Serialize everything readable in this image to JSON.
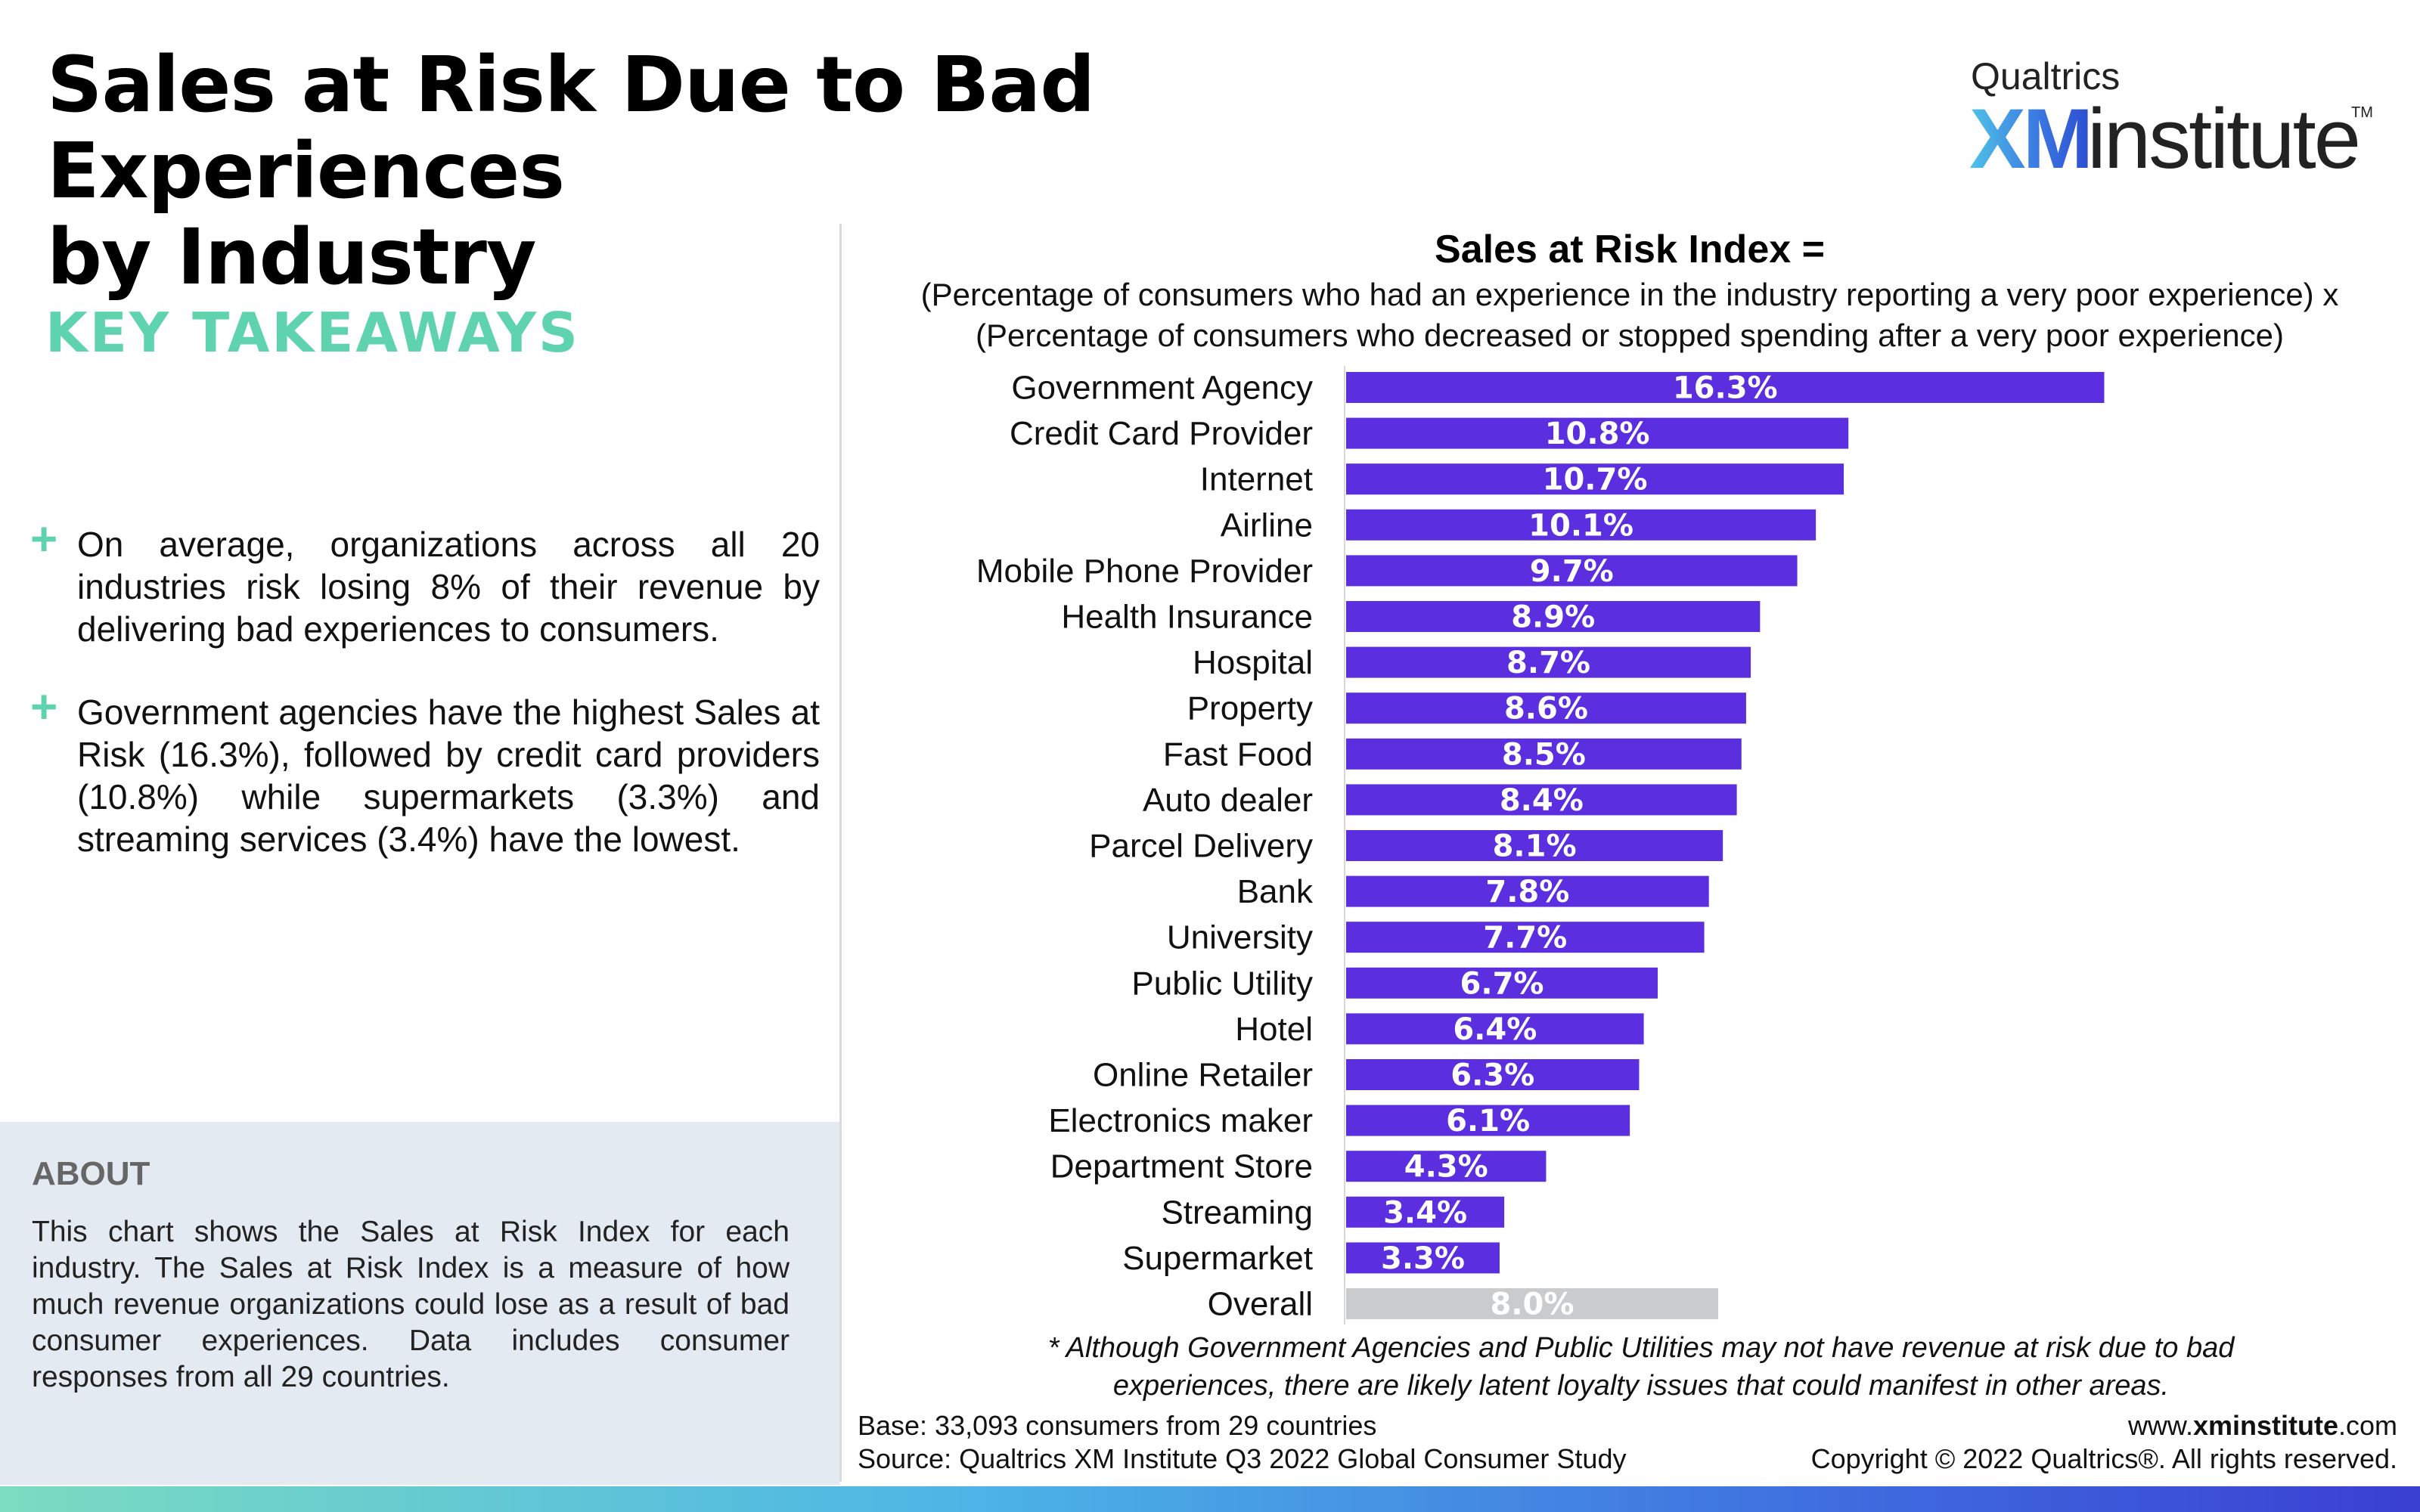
{
  "title": {
    "line1": "Sales at Risk Due to Bad Experiences",
    "line2": "by Industry"
  },
  "logo": {
    "top": "Qualtrics",
    "xm": "XM",
    "institute": "institute",
    "tm": "TM"
  },
  "key_takeaways": {
    "heading": "KEY TAKEAWAYS",
    "bullet_symbol": "+",
    "bullets": [
      "On average, organizations across all 20 industries risk losing 8% of their revenue by delivering bad experiences to consumers.",
      "Government agencies have the highest Sales at Risk (16.3%), followed by credit card providers (10.8%) while supermarkets (3.3%) and streaming services (3.4%) have the lowest."
    ]
  },
  "about": {
    "heading": "ABOUT",
    "text": "This chart shows the Sales at Risk Index for each industry. The Sales at Risk Index is a measure of how much revenue organizations could lose as a result of bad consumer experiences. Data includes consumer responses from all 29 countries."
  },
  "formula": {
    "title": "Sales at Risk Index =",
    "line1": "(Percentage of consumers who had an experience in the industry reporting a very poor experience) x",
    "line2": "(Percentage of consumers who decreased or stopped spending after a very poor experience)"
  },
  "chart_data": {
    "type": "bar",
    "orientation": "horizontal",
    "categories": [
      "Government Agency",
      "Credit Card Provider",
      "Internet",
      "Airline",
      "Mobile Phone Provider",
      "Health Insurance",
      "Hospital",
      "Property",
      "Fast Food",
      "Auto dealer",
      "Parcel Delivery",
      "Bank",
      "University",
      "Public Utility",
      "Hotel",
      "Online Retailer",
      "Electronics maker",
      "Department Store",
      "Streaming",
      "Supermarket",
      "Overall"
    ],
    "values": [
      16.3,
      10.8,
      10.7,
      10.1,
      9.7,
      8.9,
      8.7,
      8.6,
      8.5,
      8.4,
      8.1,
      7.8,
      7.7,
      6.7,
      6.4,
      6.3,
      6.1,
      4.3,
      3.4,
      3.3,
      8.0
    ],
    "value_labels": [
      "16.3%",
      "10.8%",
      "10.7%",
      "10.1%",
      "9.7%",
      "8.9%",
      "8.7%",
      "8.6%",
      "8.5%",
      "8.4%",
      "8.1%",
      "7.8%",
      "7.7%",
      "6.7%",
      "6.4%",
      "6.3%",
      "6.1%",
      "4.3%",
      "3.4%",
      "3.3%",
      "8.0%"
    ],
    "bar_color": "#5b2ee0",
    "overall_color": "#c9cbcd",
    "xlim": [
      0,
      20
    ],
    "grid": false,
    "legend": "none"
  },
  "footnote": {
    "line1": "* Although Government Agencies and Public Utilities may not have revenue at risk due to bad",
    "line2": "experiences, there are likely latent loyalty issues that could manifest in other areas."
  },
  "source": {
    "base": "Base: 33,093 consumers from 29 countries",
    "source": "Source: Qualtrics XM Institute Q3 2022 Global Consumer Study"
  },
  "website": {
    "prefix": "www.",
    "bold": "xminstitute",
    "suffix": ".com"
  },
  "copyright": "Copyright © 2022 Qualtrics®. All rights reserved."
}
